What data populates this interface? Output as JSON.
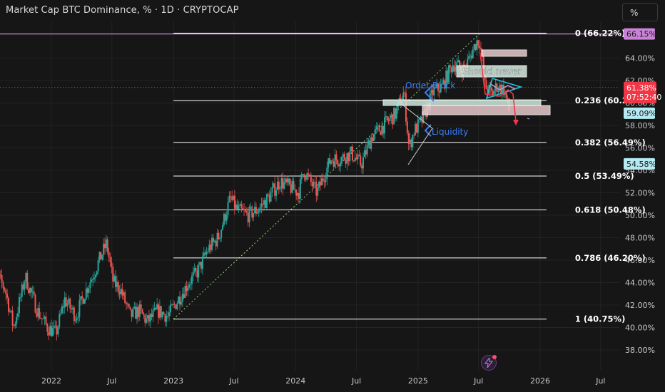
{
  "header": {
    "title": "Market Cap BTC Dominance, % · 1D · CRYPTOCAP",
    "unit_button": "%"
  },
  "colors": {
    "background": "#161616",
    "grid": "#232323",
    "axis_text": "#c8c8c8",
    "candle_up": "#26a69a",
    "candle_down": "#ef5350",
    "fib_line": "#ffffff",
    "top_line": "#c983d6",
    "trendline": "#9ed07a",
    "annotation_blue": "#3b7ef7",
    "triangle_cyan": "#22c6e0",
    "arrow_red": "#f23645"
  },
  "chart_data": {
    "type": "candlestick",
    "title": "Market Cap BTC Dominance, % · 1D · CRYPTOCAP",
    "ylim": [
      37,
      68
    ],
    "y_ticks": [
      "64.00%",
      "62.00%",
      "60.00%",
      "58.00%",
      "56.00%",
      "54.00%",
      "52.00%",
      "50.00%",
      "48.00%",
      "46.00%",
      "44.00%",
      "42.00%",
      "40.00%",
      "38.00%"
    ],
    "y_tick_values": [
      64,
      62,
      60,
      58,
      56,
      54,
      52,
      50,
      48,
      46,
      44,
      42,
      40,
      38
    ],
    "x_ticks": [
      "2022",
      "Jul",
      "2023",
      "Jul",
      "2024",
      "Jul",
      "2025",
      "Jul",
      "2026",
      "Jul"
    ],
    "x_tick_dates": [
      "2022-01-01",
      "2022-07-01",
      "2023-01-01",
      "2023-07-01",
      "2024-01-01",
      "2024-07-01",
      "2025-01-01",
      "2025-07-01",
      "2026-01-01",
      "2026-07-01"
    ],
    "price_path": [
      [
        "2021-07-01",
        45.5
      ],
      [
        "2021-08-15",
        43.5
      ],
      [
        "2021-09-10",
        40.0
      ],
      [
        "2021-10-15",
        44.5
      ],
      [
        "2021-11-20",
        41.5
      ],
      [
        "2021-12-20",
        40.0
      ],
      [
        "2022-01-15",
        39.5
      ],
      [
        "2022-02-10",
        42.5
      ],
      [
        "2022-03-15",
        41.0
      ],
      [
        "2022-04-10",
        43.0
      ],
      [
        "2022-05-10",
        45.0
      ],
      [
        "2022-06-15",
        47.5
      ],
      [
        "2022-07-05",
        44.0
      ],
      [
        "2022-07-25",
        43.5
      ],
      [
        "2022-08-25",
        41.0
      ],
      [
        "2022-09-20",
        41.5
      ],
      [
        "2022-10-15",
        40.5
      ],
      [
        "2022-11-15",
        41.5
      ],
      [
        "2022-12-15",
        41.0
      ],
      [
        "2023-01-15",
        42.5
      ],
      [
        "2023-02-15",
        44.0
      ],
      [
        "2023-03-15",
        45.0
      ],
      [
        "2023-04-15",
        47.0
      ],
      [
        "2023-05-15",
        48.0
      ],
      [
        "2023-06-20",
        51.5
      ],
      [
        "2023-07-10",
        50.5
      ],
      [
        "2023-08-10",
        50.0
      ],
      [
        "2023-09-10",
        50.5
      ],
      [
        "2023-10-10",
        51.5
      ],
      [
        "2023-11-15",
        53.0
      ],
      [
        "2023-12-15",
        52.5
      ],
      [
        "2024-01-10",
        52.0
      ],
      [
        "2024-01-25",
        54.0
      ],
      [
        "2024-03-05",
        52.0
      ],
      [
        "2024-04-15",
        55.0
      ],
      [
        "2024-05-10",
        55.0
      ],
      [
        "2024-06-15",
        55.5
      ],
      [
        "2024-07-15",
        54.5
      ],
      [
        "2024-08-15",
        57.0
      ],
      [
        "2024-09-20",
        58.0
      ],
      [
        "2024-10-25",
        59.0
      ],
      [
        "2024-11-20",
        61.0
      ],
      [
        "2024-12-05",
        56.0
      ],
      [
        "2024-12-20",
        57.5
      ],
      [
        "2025-01-15",
        58.5
      ],
      [
        "2025-02-15",
        61.0
      ],
      [
        "2025-03-15",
        61.5
      ],
      [
        "2025-04-15",
        63.5
      ],
      [
        "2025-05-20",
        63.0
      ],
      [
        "2025-06-25",
        65.5
      ],
      [
        "2025-07-05",
        65.5
      ],
      [
        "2025-07-20",
        61.5
      ],
      [
        "2025-08-10",
        60.8
      ],
      [
        "2025-08-25",
        61.5
      ],
      [
        "2025-09-15",
        61.2
      ],
      [
        "2025-10-01",
        59.2
      ]
    ],
    "current_price": "61.38%",
    "countdown": "07:52:40",
    "price_labels": [
      {
        "label": "66.15%",
        "value": 66.15,
        "style": "purple"
      },
      {
        "label": "59.09%",
        "value": 59.09,
        "style": "cyan"
      },
      {
        "label": "54.58%",
        "value": 54.58,
        "style": "cyan"
      }
    ],
    "fib_levels": [
      {
        "label": "0 (66.22%)",
        "value": 66.22
      },
      {
        "label": "0.236 (60.21%)",
        "value": 60.21
      },
      {
        "label": "0.382 (56.49%)",
        "value": 56.49
      },
      {
        "label": "0.5 (53.49%)",
        "value": 53.49
      },
      {
        "label": "0.618 (50.48%)",
        "value": 50.48
      },
      {
        "label": "0.786 (46.20%)",
        "value": 46.2
      },
      {
        "label": "1 (40.75%)",
        "value": 40.75
      }
    ],
    "fib_start_date": "2023-01-01",
    "fib_end_date": "2026-01-20",
    "annotations": {
      "order_block": "Order Block",
      "liquidity": "Liquidity",
      "should_never": "Should never"
    }
  }
}
